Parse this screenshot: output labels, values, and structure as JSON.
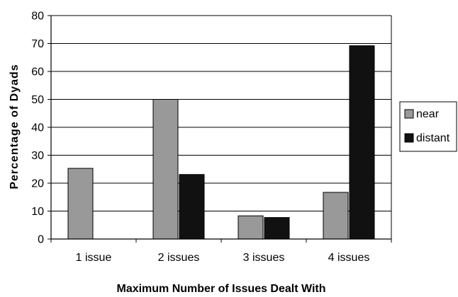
{
  "chart_data": {
    "type": "bar",
    "title": "",
    "xlabel": "Maximum Number of Issues Dealt With",
    "ylabel": "Percentage of Dyads",
    "categories": [
      "1 issue",
      "2 issues",
      "3 issues",
      "4 issues"
    ],
    "series": [
      {
        "name": "near",
        "values": [
          25.3,
          50.0,
          8.3,
          16.7
        ]
      },
      {
        "name": "distant",
        "values": [
          0,
          23.1,
          7.7,
          69.2
        ]
      }
    ],
    "ylim": [
      0,
      80
    ],
    "yticks": [
      0,
      10,
      20,
      30,
      40,
      50,
      60,
      70,
      80
    ],
    "grid": true,
    "legend_position": "right",
    "colors": {
      "near": "#999999",
      "distant": "#111111",
      "grid": "#000000",
      "outline": "#000000"
    }
  }
}
